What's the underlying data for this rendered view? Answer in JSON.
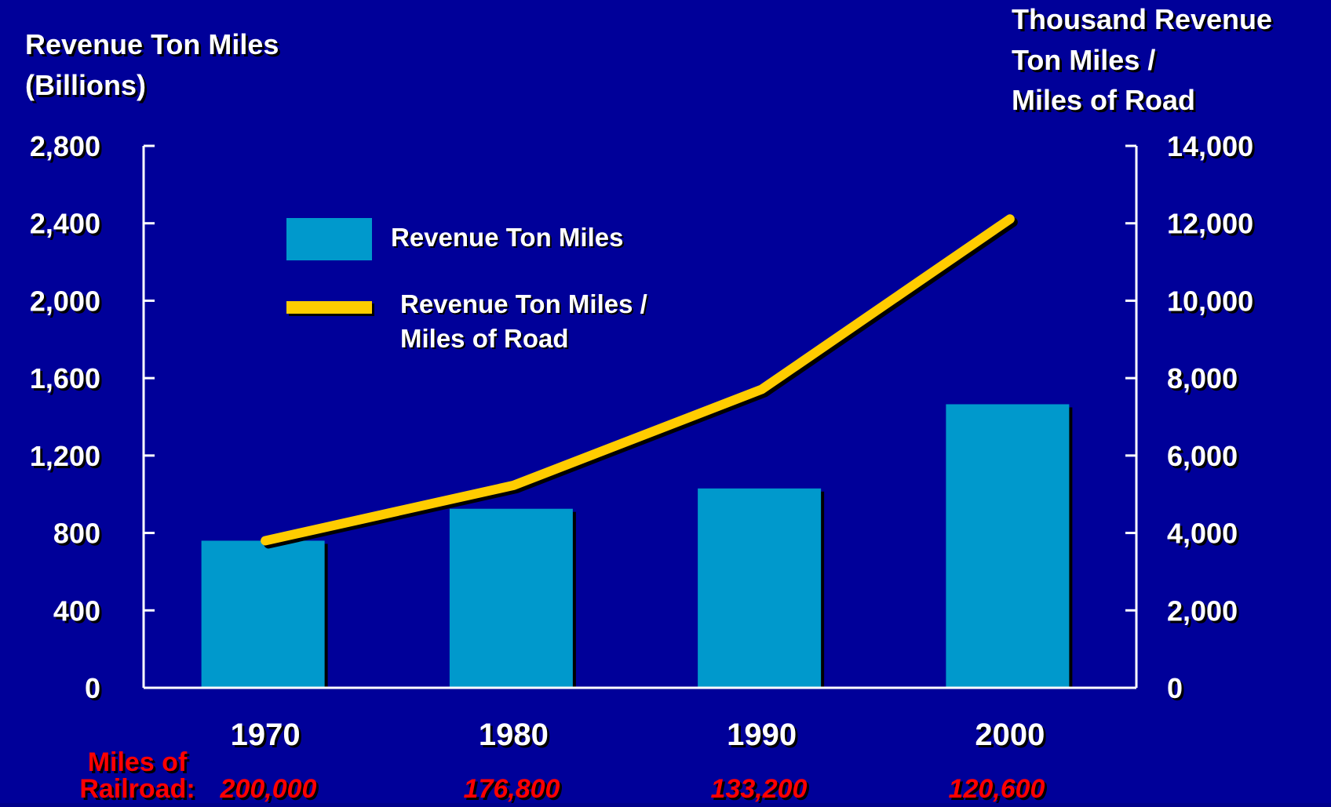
{
  "chart_data": {
    "type": "bar",
    "categories": [
      "1970",
      "1980",
      "1990",
      "2000"
    ],
    "series": [
      {
        "name": "Revenue Ton Miles",
        "type": "bar",
        "axis": "left",
        "values": [
          760,
          925,
          1030,
          1465
        ]
      },
      {
        "name": "Revenue Ton Miles / Miles of Road",
        "type": "line",
        "axis": "right",
        "values": [
          3800,
          5230,
          7710,
          12110
        ]
      }
    ],
    "ylabel_left_lines": [
      "Revenue Ton Miles",
      "(Billions)"
    ],
    "ylabel_right_lines": [
      "Thousand Revenue",
      "Ton Miles /",
      "Miles of Road"
    ],
    "ylim_left": [
      0,
      2800
    ],
    "ylim_right": [
      0,
      14000
    ],
    "left_ticks": [
      "0",
      "400",
      "800",
      "1,200",
      "1,600",
      "2,000",
      "2,400",
      "2,800"
    ],
    "right_ticks": [
      "0",
      "2,000",
      "4,000",
      "6,000",
      "8,000",
      "10,000",
      "12,000",
      "14,000"
    ],
    "legend": {
      "placement": "top-left",
      "bar_label": "Revenue Ton Miles",
      "line_label_lines": [
        "Revenue Ton Miles /",
        "Miles of Road"
      ]
    },
    "footer": {
      "label_lines": [
        "Miles of",
        "Railroad:"
      ],
      "values": [
        "200,000",
        "176,800",
        "133,200",
        "120,600"
      ]
    },
    "colors": {
      "background": "#000099",
      "bar": "#0099CC",
      "line": "#FFCC00",
      "text": "#FFFFFF",
      "footer": "#FF0000",
      "axis": "#FFFFFF"
    },
    "grid": false
  }
}
